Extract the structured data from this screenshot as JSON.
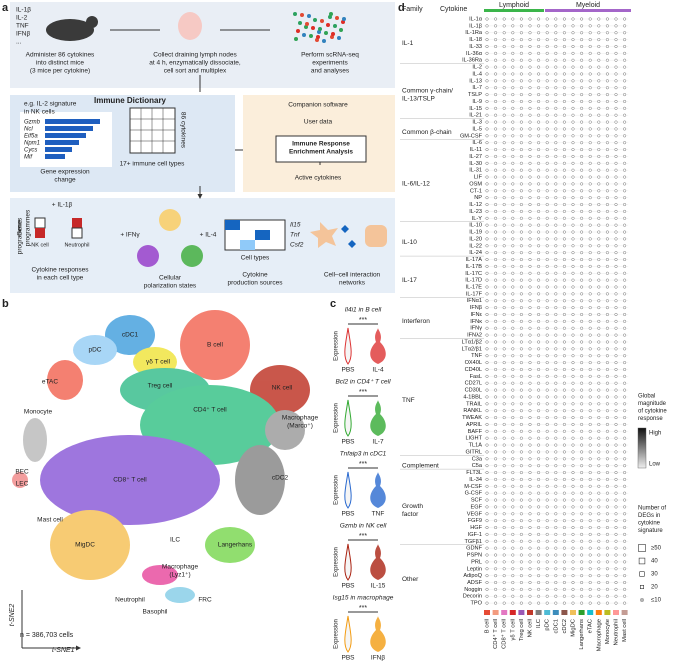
{
  "panel_labels": [
    "a",
    "b",
    "c",
    "d"
  ],
  "panel_a": {
    "cytokines": [
      "IL-1β",
      "IL-2",
      "TNF",
      "IFNβ",
      "..."
    ],
    "step1": [
      "Administer 86 cytokines",
      "into distinct mice",
      "(3 mice per cytokine)"
    ],
    "step2": [
      "Collect draining lymph nodes",
      "at 4 h, enzymatically dissociate,",
      "cell sort and multiplex"
    ],
    "step3": [
      "Perform scRNA-seq",
      "experiments",
      "and analyses"
    ],
    "dictionary_title": "Immune Dictionary",
    "example": [
      "e.g. IL-2 signature",
      "in NK cells"
    ],
    "genes": [
      "Gzmb",
      "Ncl",
      "Eif5a",
      "Npm1",
      "Cycs",
      "Mif"
    ],
    "gene_axis": [
      "Gene expression",
      "change"
    ],
    "rows_label": "86 cytokines",
    "cols_label": "17+ immune cell types",
    "software": "Companion software",
    "user_data": "User data",
    "irea": [
      "Immune Response",
      "Enrichment Analysis"
    ],
    "active": "Active cytokines",
    "il1b": "+ IL-1β",
    "programmes": [
      "Gene",
      "programmes"
    ],
    "nk": "NK cell",
    "neutrophil": "Neutrophil",
    "resp_caption": [
      "Cytokine responses",
      "in each cell type"
    ],
    "ifng": "+ IFNγ",
    "il4": "+ IL-4",
    "polar_caption": [
      "Cellular",
      "polarization states"
    ],
    "prod_genes": [
      "Il15",
      "Tnf",
      "Csf2"
    ],
    "cell_types": "Cell types",
    "prod_caption": [
      "Cytokine",
      "production sources"
    ],
    "net_caption": [
      "Cell–cell interaction",
      "networks"
    ]
  },
  "panel_b": {
    "clusters": [
      "cDC1",
      "pDC",
      "γδ T cell",
      "B cell",
      "Treg cell",
      "NK cell",
      "eTAC",
      "CD4⁺ T cell",
      "Macrophage",
      "(Marco⁺)",
      "Monocyte",
      "BEC",
      "LEC",
      "Mast cell",
      "CD8⁺ T cell",
      "cDC2",
      "MigDC",
      "ILC",
      "Langerhans",
      "Macrophage",
      "(Lyz1⁺)",
      "Neutrophil",
      "FRC",
      "Basophil"
    ],
    "n_cells": "n = 386,703 cells",
    "xlabel": "t-SNE1",
    "ylabel": "t-SNE2"
  },
  "panel_c": {
    "ylabel": "Expression",
    "control": "PBS",
    "significance": "***",
    "plots": [
      {
        "title": "Il4i1 in B cell",
        "treatment": "IL-4"
      },
      {
        "title": "Bcl2 in CD4⁺ T cell",
        "treatment": "IL-7"
      },
      {
        "title": "Tnfaip3 in cDC1",
        "treatment": "TNF"
      },
      {
        "title": "Gzmb in NK cell",
        "treatment": "IL-15"
      },
      {
        "title": "Isg15 in macrophage",
        "treatment": "IFNβ"
      }
    ]
  },
  "panel_d": {
    "family_header": "Family",
    "cytokine_header": "Cytokine",
    "lymphoid": "Lymphoid",
    "myeloid": "Myeloid",
    "families": [
      [
        "IL-1"
      ],
      [
        "Common γ-chain/",
        "IL-13/TSLP"
      ],
      [
        "Common β-chain"
      ],
      [
        "IL-6/IL-12"
      ],
      [
        "IL-10"
      ],
      [
        "IL-17"
      ],
      [
        "Interferon"
      ],
      [
        "TNF"
      ],
      [
        "Complement"
      ],
      [
        "Growth",
        "factor"
      ],
      [
        "Other"
      ]
    ],
    "cytokines": [
      "IL-1α",
      "IL-1β",
      "IL-1Ra",
      "IL-18",
      "IL-33",
      "IL-36α",
      "IL-36Ra",
      "IL-2",
      "IL-4",
      "IL-13",
      "IL-7",
      "TSLP",
      "IL-9",
      "IL-15",
      "IL-21",
      "IL-3",
      "IL-5",
      "GM-CSF",
      "IL-6",
      "IL-11",
      "IL-27",
      "IL-30",
      "IL-31",
      "LIF",
      "OSM",
      "CT-1",
      "NP",
      "IL-12",
      "IL-23",
      "IL-Y",
      "IL-10",
      "IL-19",
      "IL-20",
      "IL-22",
      "IL-24",
      "IL-17A",
      "IL-17B",
      "IL-17C",
      "IL-17D",
      "IL-17E",
      "IL-17F",
      "IFNα1",
      "IFNβ",
      "IFNε",
      "IFNκ",
      "IFNγ",
      "IFNλ2",
      "LTα1/β2",
      "LTα2/β1",
      "TNF",
      "OX40L",
      "CD40L",
      "FasL",
      "CD27L",
      "CD30L",
      "4-1BBL",
      "TRAIL",
      "RANKL",
      "TWEAK",
      "APRIL",
      "BAFF",
      "LIGHT",
      "TL1A",
      "GITRL",
      "C3a",
      "C5a",
      "FLT3L",
      "IL-34",
      "M-CSF",
      "G-CSF",
      "SCF",
      "EGF",
      "VEGF",
      "FGF9",
      "HGF",
      "IGF-1",
      "TGFβ1",
      "GDNF",
      "PSPN",
      "PRL",
      "Leptin",
      "AdipoQ",
      "ADSF",
      "Noggin",
      "Decorin",
      "TPO"
    ],
    "cell_types": [
      "B cell",
      "CD4⁺ T cell",
      "CD8⁺ T cell",
      "γδ T cell",
      "Treg cell",
      "NK cell",
      "ILC",
      "pDC",
      "cDC1",
      "cDC2",
      "MigDC",
      "Langerhans",
      "eTAC",
      "Macrophage",
      "Monocyte",
      "Neutrophil",
      "Mast cell"
    ],
    "magnitude_title": [
      "Global",
      "magnitude",
      "of cytokine",
      "response"
    ],
    "high": "High",
    "low": "Low",
    "deg_title": [
      "Number of",
      "DEGs in",
      "cytokine",
      "signature"
    ],
    "deg_levels": [
      "≥50",
      "40",
      "30",
      "20",
      "≤10"
    ]
  }
}
